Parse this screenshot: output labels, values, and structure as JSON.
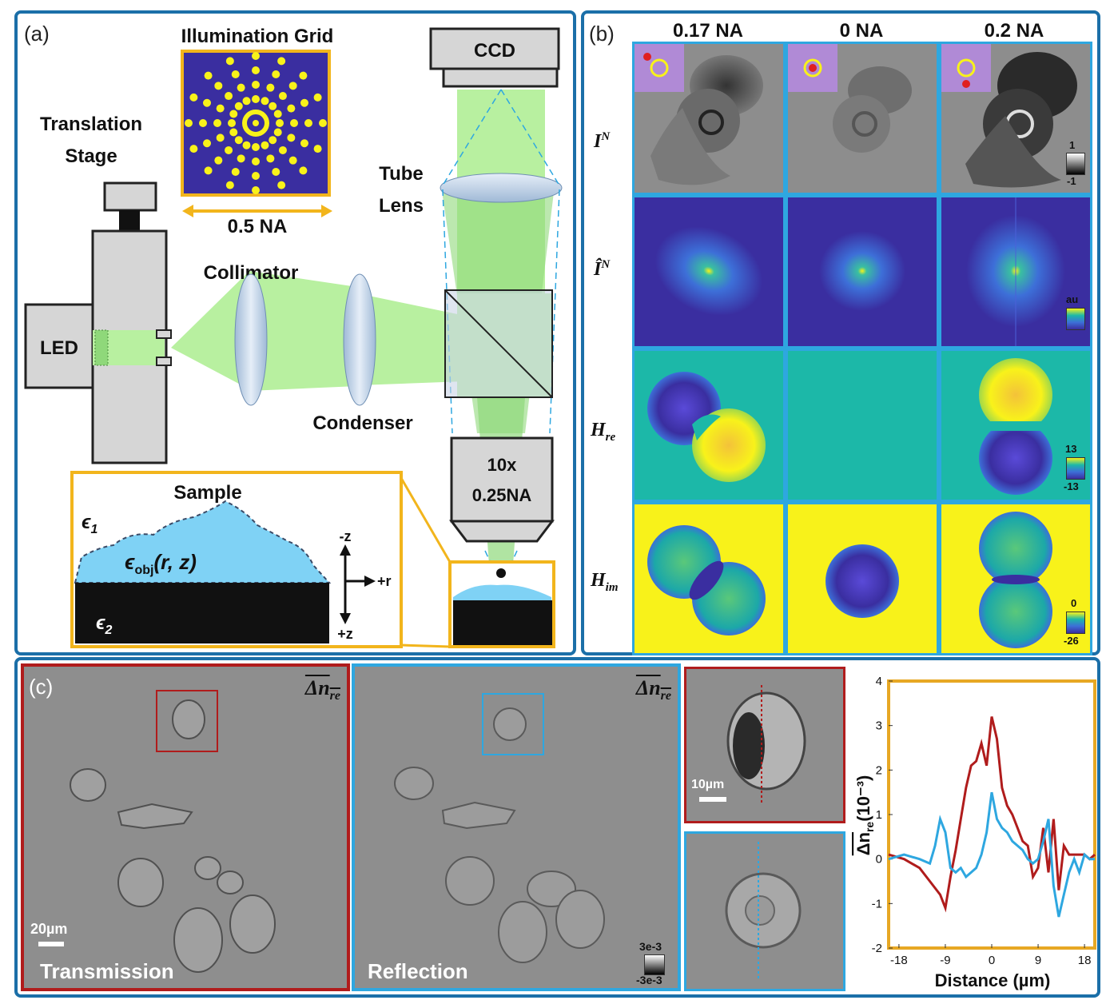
{
  "panel_a": {
    "label": "(a)",
    "illumination_grid": "Illumination Grid",
    "grid_na": "0.5 NA",
    "translation_stage_1": "Translation",
    "translation_stage_2": "Stage",
    "led": "LED",
    "collimator": "Collimator",
    "condenser": "Condenser",
    "tube_lens_1": "Tube",
    "tube_lens_2": "Lens",
    "ccd": "CCD",
    "objective_1": "10x",
    "objective_2": "0.25NA",
    "sample": "Sample",
    "eps1": "ϵ",
    "eps1_sub": "1",
    "eps2": "ϵ",
    "eps2_sub": "2",
    "eps_obj": "ϵ",
    "eps_obj_sub": "obj",
    "eps_obj_args": "(r, z)",
    "axis_minus_z": "-z",
    "axis_plus_z": "+z",
    "axis_plus_r": "+r"
  },
  "panel_b": {
    "label": "(b)",
    "columns": [
      "0.17 NA",
      "0 NA",
      "0.2 NA"
    ],
    "rows": [
      {
        "sym": "I",
        "sup": "N",
        "sub": ""
      },
      {
        "sym": "Î",
        "sup": "N",
        "sub": ""
      },
      {
        "sym": "H",
        "sup": "",
        "sub": "re"
      },
      {
        "sym": "H",
        "sup": "",
        "sub": "im"
      }
    ],
    "colorbars": [
      {
        "top": "1",
        "bottom": "-1"
      },
      {
        "top": "au",
        "bottom": ""
      },
      {
        "top": "13",
        "bottom": "-13"
      },
      {
        "top": "0",
        "bottom": "-26"
      }
    ]
  },
  "panel_c": {
    "label": "(c)",
    "transmission": "Transmission",
    "reflection": "Reflection",
    "dn_label": "Δn",
    "dn_sub": "re",
    "scale_20": "20µm",
    "scale_10": "10µm",
    "cbar_top": "3e-3",
    "cbar_bottom": "-3e-3",
    "colors": {
      "transmission": "#b01c1c",
      "reflection": "#2ea7e0",
      "plot_frame": "#e7a824"
    }
  },
  "chart_data": {
    "type": "line",
    "xlabel": "Distance (µm)",
    "ylabel": "Δn",
    "ylabel_sub": "re",
    "ylabel_unit": "(10⁻³)",
    "xlim": [
      -20,
      20
    ],
    "ylim": [
      -2,
      4
    ],
    "xticks": [
      -18,
      -9,
      0,
      9,
      18
    ],
    "yticks": [
      4,
      3,
      2,
      1,
      0,
      -1,
      -2
    ],
    "series": [
      {
        "color": "#b01c1c",
        "x": [
          -20,
          -17,
          -14,
          -12,
          -10,
          -9,
          -8,
          -7,
          -6,
          -5,
          -4,
          -3,
          -2,
          -1,
          0,
          1,
          2,
          3,
          4,
          5,
          6,
          7,
          8,
          9,
          10,
          11,
          12,
          13,
          14,
          15,
          16,
          17,
          18,
          19,
          20
        ],
        "y": [
          0.1,
          0.0,
          -0.2,
          -0.5,
          -0.8,
          -1.1,
          -0.4,
          0.2,
          0.9,
          1.6,
          2.1,
          2.2,
          2.6,
          2.1,
          3.2,
          2.7,
          1.6,
          1.2,
          1.0,
          0.7,
          0.4,
          0.3,
          -0.4,
          -0.2,
          0.7,
          -0.3,
          0.9,
          -0.7,
          0.3,
          0.1,
          0.1,
          0.1,
          0.1,
          0.0,
          0.1
        ]
      },
      {
        "color": "#2ea7e0",
        "x": [
          -20,
          -17,
          -14,
          -12,
          -11,
          -10,
          -9,
          -8,
          -7,
          -6,
          -5,
          -4,
          -3,
          -2,
          -1,
          0,
          1,
          2,
          3,
          4,
          5,
          6,
          7,
          8,
          9,
          10,
          11,
          12,
          13,
          14,
          15,
          16,
          17,
          18,
          19,
          20
        ],
        "y": [
          0.0,
          0.1,
          0.0,
          -0.1,
          0.3,
          0.9,
          0.6,
          -0.2,
          -0.3,
          -0.2,
          -0.4,
          -0.3,
          -0.2,
          0.1,
          0.6,
          1.5,
          0.9,
          0.7,
          0.6,
          0.4,
          0.3,
          0.2,
          0.0,
          -0.1,
          0.0,
          0.4,
          0.9,
          -0.6,
          -1.3,
          -0.8,
          -0.3,
          0.0,
          -0.3,
          0.1,
          0.0,
          0.0
        ]
      }
    ]
  }
}
